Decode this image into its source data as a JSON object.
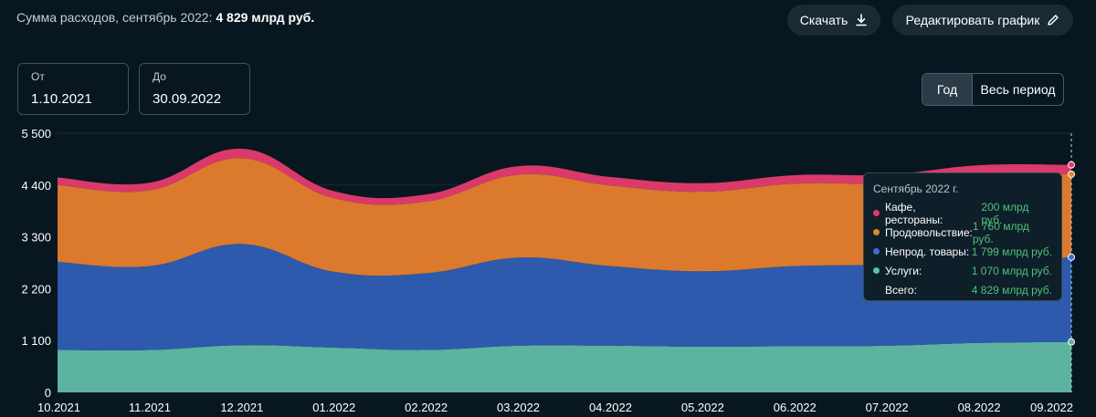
{
  "header": {
    "title_prefix": "Сумма расходов, сентябрь 2022:",
    "title_value": "4 829 млрд руб.",
    "download_label": "Скачать",
    "edit_label": "Редактировать график"
  },
  "filters": {
    "from_label": "От",
    "from_value": "1.10.2021",
    "to_label": "До",
    "to_value": "30.09.2022",
    "period_year": "Год",
    "period_all": "Весь период"
  },
  "colors": {
    "services": "#5cb3a0",
    "nonfood": "#2d5aac",
    "food": "#db7a2c",
    "cafe": "#d93a6a",
    "background": "#07161f",
    "grid": "#1c2c36",
    "axis_text": "#ffffff"
  },
  "tooltip": {
    "title": "Сентябрь 2022 г.",
    "rows": [
      {
        "name": "Кафе, рестораны:",
        "value": "200 млрд руб.",
        "color": "#e5376b"
      },
      {
        "name": "Продовольствие:",
        "value": "1 760 млрд руб.",
        "color": "#e08a2a"
      },
      {
        "name": "Непрод. товары:",
        "value": "1 799 млрд руб.",
        "color": "#3a6cd0"
      },
      {
        "name": "Услуги:",
        "value": "1 070 млрд руб.",
        "color": "#59c2a4"
      },
      {
        "name": "Всего:",
        "value": "4 829 млрд руб.",
        "color": ""
      }
    ]
  },
  "chart_data": {
    "type": "area",
    "stacked": true,
    "title": "Сумма расходов, сентябрь 2022: 4 829 млрд руб.",
    "categories": [
      "10.2021",
      "11.2021",
      "12.2021",
      "01.2022",
      "02.2022",
      "03.2022",
      "04.2022",
      "05.2022",
      "06.2022",
      "07.2022",
      "08.2022",
      "09.2022"
    ],
    "yticks": [
      0,
      1100,
      2200,
      3300,
      4400,
      5500
    ],
    "ytick_labels": [
      "0",
      "1 100",
      "2 200",
      "3 300",
      "4 400",
      "5 500"
    ],
    "ylim": [
      0,
      5500
    ],
    "series": [
      {
        "name": "Услуги",
        "values": [
          900,
          900,
          1000,
          950,
          900,
          990,
          990,
          970,
          980,
          990,
          1050,
          1070
        ]
      },
      {
        "name": "Непрод. товары",
        "values": [
          1870,
          1780,
          2150,
          1610,
          1630,
          1870,
          1690,
          1600,
          1700,
          1720,
          1720,
          1799
        ]
      },
      {
        "name": "Продовольствие",
        "values": [
          1630,
          1610,
          1820,
          1560,
          1520,
          1760,
          1710,
          1690,
          1750,
          1730,
          1850,
          1760
        ]
      },
      {
        "name": "Кафе, рестораны",
        "values": [
          160,
          160,
          200,
          150,
          150,
          180,
          180,
          180,
          180,
          180,
          200,
          200
        ]
      }
    ]
  }
}
